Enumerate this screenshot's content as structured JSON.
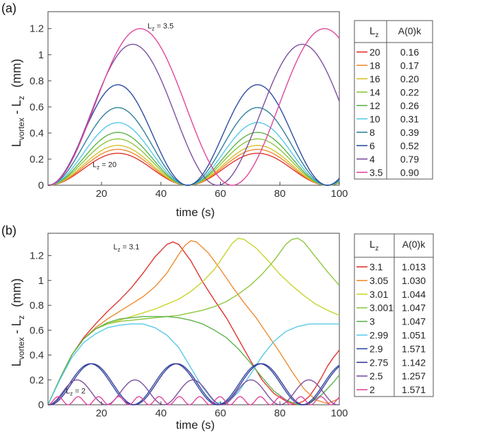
{
  "figure": {
    "panels": [
      "(a)",
      "(b)"
    ]
  },
  "chart_data": [
    {
      "type": "line",
      "panel_label": "(a)",
      "xlabel": "time (s)",
      "ylabel_main": "L",
      "ylabel_sub1": "vortex",
      "ylabel_mid": " - L",
      "ylabel_sub2": "z",
      "ylabel_unit": "(mm)",
      "xlim": [
        2,
        100
      ],
      "ylim": [
        0,
        1.33
      ],
      "xticks": [
        20,
        40,
        60,
        80,
        100
      ],
      "yticks": [
        0,
        0.2,
        0.4,
        0.6,
        0.8,
        1,
        1.2
      ],
      "ytick_labels": [
        "0",
        "0.2",
        "0.4",
        "0.6",
        "0.8",
        "1",
        "1.2"
      ],
      "annotations": [
        {
          "main": "L",
          "sub": "z",
          "rest": " = 3.5",
          "x": 35.5,
          "y": 1.2
        },
        {
          "main": "L",
          "sub": "z",
          "rest": " = 20",
          "x": 17,
          "y": 0.14
        }
      ],
      "legend": {
        "header_col1": "L",
        "header_col1_sub": "z",
        "header_col2": "A(0)k",
        "entries": [
          {
            "name": "20",
            "value": "0.16"
          },
          {
            "name": "18",
            "value": "0.17"
          },
          {
            "name": "16",
            "value": "0.20"
          },
          {
            "name": "14",
            "value": "0.22"
          },
          {
            "name": "12",
            "value": "0.26"
          },
          {
            "name": "10",
            "value": "0.31"
          },
          {
            "name": "8",
            "value": "0.39"
          },
          {
            "name": "6",
            "value": "0.52"
          },
          {
            "name": "4",
            "value": "0.79"
          },
          {
            "name": "3.5",
            "value": "0.90"
          }
        ]
      },
      "series": [
        {
          "name": "20",
          "color": "#e0322c",
          "kind": "sin",
          "amp": 0.245,
          "period": 47,
          "phase": 0
        },
        {
          "name": "18",
          "color": "#ef8a2e",
          "kind": "sin",
          "amp": 0.275,
          "period": 47,
          "phase": 0
        },
        {
          "name": "16",
          "color": "#d6c02a",
          "kind": "sin",
          "amp": 0.305,
          "period": 47,
          "phase": 0
        },
        {
          "name": "14",
          "color": "#8cc63e",
          "kind": "sin",
          "amp": 0.355,
          "period": 47,
          "phase": 0
        },
        {
          "name": "12",
          "color": "#5bb24a",
          "kind": "sin",
          "amp": 0.405,
          "period": 47,
          "phase": 0
        },
        {
          "name": "10",
          "color": "#55c8e8",
          "kind": "sin",
          "amp": 0.48,
          "period": 47,
          "phase": 0
        },
        {
          "name": "8",
          "color": "#2f7f98",
          "kind": "sin",
          "amp": 0.595,
          "period": 47,
          "phase": 0
        },
        {
          "name": "6",
          "color": "#2b4aa0",
          "kind": "sin",
          "amp": 0.77,
          "period": 47,
          "phase": 0
        },
        {
          "name": "4",
          "color": "#7b4d9e",
          "kind": "sin",
          "amp": 1.08,
          "period": 57,
          "phase": 0
        },
        {
          "name": "3.5",
          "color": "#e0449a",
          "kind": "sin",
          "amp": 1.2,
          "period": 62,
          "phase": 0
        }
      ]
    },
    {
      "type": "line",
      "panel_label": "(b)",
      "xlabel": "time (s)",
      "ylabel_main": "L",
      "ylabel_sub1": "vortex",
      "ylabel_mid": " - L",
      "ylabel_sub2": "z",
      "ylabel_unit": "(mm)",
      "xlim": [
        2,
        100
      ],
      "ylim": [
        0,
        1.38
      ],
      "xticks": [
        20,
        40,
        60,
        80,
        100
      ],
      "yticks": [
        0,
        0.2,
        0.4,
        0.6,
        0.8,
        1,
        1.2
      ],
      "ytick_labels": [
        "0",
        "0.2",
        "0.4",
        "0.6",
        "0.8",
        "1",
        "1.2"
      ],
      "annotations": [
        {
          "main": "L",
          "sub": "z",
          "rest": " = 3.1",
          "x": 24,
          "y": 1.25
        },
        {
          "main": "L",
          "sub": "z",
          "rest": " = 2",
          "x": 8,
          "y": 0.09
        }
      ],
      "legend": {
        "header_col1": "L",
        "header_col1_sub": "z",
        "header_col2": "A(0)k",
        "entries": [
          {
            "name": "3.1",
            "value": "1.013"
          },
          {
            "name": "3.05",
            "value": "1.030"
          },
          {
            "name": "3.01",
            "value": "1.044"
          },
          {
            "name": "3.001",
            "value": "1.047"
          },
          {
            "name": "3",
            "value": "1.047"
          },
          {
            "name": "2.99",
            "value": "1.051"
          },
          {
            "name": "2.9",
            "value": "1.571"
          },
          {
            "name": "2.75",
            "value": "1.142"
          },
          {
            "name": "2.5",
            "value": "1.257"
          },
          {
            "name": "2",
            "value": "1.571"
          }
        ]
      },
      "series": [
        {
          "name": "3.1",
          "color": "#e0322c",
          "kind": "points",
          "x": [
            2,
            6,
            10,
            14,
            18,
            22,
            26,
            30,
            34,
            38,
            42,
            44,
            46,
            50,
            54,
            58,
            62,
            66,
            70,
            74,
            78,
            82,
            85,
            88,
            90,
            92,
            94,
            96,
            98,
            100
          ],
          "y": [
            0,
            0.21,
            0.4,
            0.54,
            0.65,
            0.75,
            0.84,
            0.94,
            1.06,
            1.19,
            1.29,
            1.31,
            1.29,
            1.16,
            0.99,
            0.84,
            0.7,
            0.53,
            0.36,
            0.2,
            0.09,
            0.03,
            0.0,
            0.03,
            0.07,
            0.14,
            0.22,
            0.31,
            0.38,
            0.44
          ]
        },
        {
          "name": "3.05",
          "color": "#ef8a2e",
          "kind": "points",
          "x": [
            2,
            6,
            10,
            14,
            18,
            22,
            26,
            30,
            34,
            38,
            42,
            46,
            48,
            50,
            52,
            56,
            60,
            64,
            68,
            72,
            76,
            80,
            84,
            88,
            92,
            96,
            100
          ],
          "y": [
            0,
            0.21,
            0.4,
            0.53,
            0.62,
            0.69,
            0.75,
            0.81,
            0.87,
            0.95,
            1.06,
            1.21,
            1.28,
            1.32,
            1.31,
            1.22,
            1.09,
            0.95,
            0.82,
            0.7,
            0.56,
            0.42,
            0.27,
            0.13,
            0.04,
            0.01,
            0.05
          ]
        },
        {
          "name": "3.01",
          "color": "#c8d42a",
          "kind": "points",
          "x": [
            2,
            6,
            10,
            14,
            18,
            22,
            26,
            30,
            34,
            38,
            42,
            46,
            50,
            54,
            58,
            62,
            64,
            66,
            68,
            72,
            76,
            80,
            84,
            88,
            92,
            96,
            100
          ],
          "y": [
            0,
            0.21,
            0.4,
            0.53,
            0.61,
            0.65,
            0.68,
            0.71,
            0.74,
            0.77,
            0.81,
            0.85,
            0.91,
            0.99,
            1.09,
            1.23,
            1.3,
            1.34,
            1.33,
            1.26,
            1.16,
            1.05,
            0.96,
            0.88,
            0.81,
            0.76,
            0.72
          ]
        },
        {
          "name": "3.001",
          "color": "#8cc63e",
          "kind": "points",
          "x": [
            2,
            6,
            10,
            14,
            18,
            22,
            26,
            30,
            34,
            38,
            42,
            46,
            50,
            54,
            58,
            62,
            66,
            70,
            74,
            78,
            82,
            84,
            86,
            88,
            92,
            96,
            100
          ],
          "y": [
            0,
            0.21,
            0.4,
            0.53,
            0.61,
            0.65,
            0.67,
            0.68,
            0.69,
            0.7,
            0.71,
            0.72,
            0.74,
            0.76,
            0.79,
            0.83,
            0.89,
            0.96,
            1.05,
            1.16,
            1.29,
            1.33,
            1.34,
            1.31,
            1.19,
            1.07,
            0.96
          ]
        },
        {
          "name": "3",
          "color": "#5bb24a",
          "kind": "points",
          "x": [
            2,
            6,
            10,
            14,
            18,
            22,
            26,
            30,
            34,
            38,
            42,
            46,
            50,
            54,
            58,
            62,
            66,
            70,
            74,
            78,
            82,
            86,
            88,
            90,
            94,
            98,
            100
          ],
          "y": [
            0,
            0.21,
            0.4,
            0.53,
            0.61,
            0.66,
            0.69,
            0.7,
            0.71,
            0.71,
            0.71,
            0.7,
            0.68,
            0.65,
            0.6,
            0.54,
            0.45,
            0.34,
            0.22,
            0.11,
            0.04,
            0.0,
            0.0,
            0.01,
            0.08,
            0.18,
            0.24
          ]
        },
        {
          "name": "2.99",
          "color": "#55c8e8",
          "kind": "points",
          "x": [
            2,
            6,
            10,
            14,
            18,
            22,
            26,
            30,
            34,
            38,
            42,
            46,
            50,
            54,
            58,
            62,
            66,
            70,
            74,
            78,
            82,
            86,
            90,
            94,
            98,
            100
          ],
          "y": [
            0,
            0.2,
            0.38,
            0.5,
            0.57,
            0.62,
            0.64,
            0.65,
            0.65,
            0.62,
            0.56,
            0.46,
            0.3,
            0.14,
            0.02,
            0.01,
            0.1,
            0.24,
            0.39,
            0.51,
            0.59,
            0.63,
            0.65,
            0.65,
            0.65,
            0.65
          ]
        },
        {
          "name": "2.9",
          "color": "#2b4aa0",
          "kind": "sin",
          "amp": 0.33,
          "period": 28.5,
          "phase": 0
        },
        {
          "name": "2.75",
          "color": "#3a3a9a",
          "kind": "sin",
          "amp": 0.33,
          "period": 28.5,
          "phase": 0.6
        },
        {
          "name": "2.5",
          "color": "#7b4d9e",
          "kind": "sin",
          "amp": 0.2,
          "period": 19.5,
          "phase": 0
        },
        {
          "name": "2",
          "color": "#e0449a",
          "kind": "sin",
          "amp": 0.065,
          "period": 6.8,
          "phase": 0
        }
      ]
    }
  ]
}
